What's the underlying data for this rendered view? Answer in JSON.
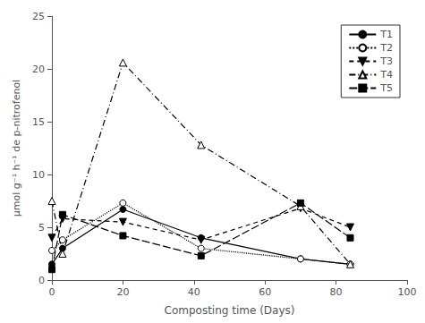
{
  "chart_data": {
    "type": "line",
    "x": [
      0,
      3,
      20,
      42,
      70,
      84
    ],
    "series": [
      {
        "name": "T1",
        "values": [
          1.5,
          3.0,
          6.7,
          4.0,
          2.0,
          1.5
        ],
        "color": "black",
        "marker": "filled_circle",
        "line_style": "solid"
      },
      {
        "name": "T2",
        "values": [
          2.8,
          3.8,
          7.3,
          3.0,
          2.0,
          1.5
        ],
        "color": "black",
        "marker": "open_circle",
        "line_style": "dotted"
      },
      {
        "name": "T3",
        "values": [
          4.0,
          5.8,
          5.5,
          3.8,
          6.8,
          5.0
        ],
        "color": "black",
        "marker": "filled_triangle_down",
        "line_style": "dashed"
      },
      {
        "name": "T4",
        "values": [
          7.5,
          2.5,
          20.6,
          12.8,
          7.0,
          1.5
        ],
        "color": "black",
        "marker": "open_triangle_up",
        "line_style": "dashdot"
      },
      {
        "name": "T5",
        "values": [
          1.0,
          6.2,
          4.2,
          2.3,
          7.3,
          4.0
        ],
        "color": "black",
        "marker": "filled_square",
        "line_style": "longdash"
      }
    ],
    "xlabel": "Composting time (Days)",
    "ylabel": "μmol g⁻¹ h⁻¹ de p-nitrofenol",
    "xlim": [
      0,
      100
    ],
    "ylim": [
      0,
      25
    ],
    "xticks": [
      0,
      20,
      40,
      60,
      80,
      100
    ],
    "yticks": [
      0,
      5,
      10,
      15,
      20,
      25
    ],
    "grid": false,
    "legend": "upper right"
  }
}
